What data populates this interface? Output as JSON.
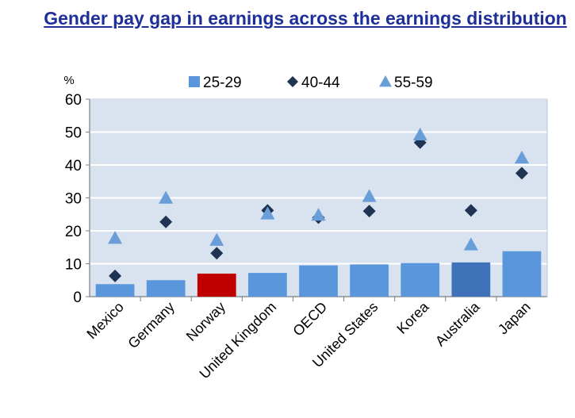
{
  "chart_data": {
    "type": "bar",
    "title": "Gender pay gap in earnings across the earnings distribution",
    "ylabel": "%",
    "ylim": [
      0,
      60
    ],
    "yticks": [
      0,
      10,
      20,
      30,
      40,
      50,
      60
    ],
    "grid": true,
    "legend_position": "top-center",
    "categories": [
      "Mexico",
      "Germany",
      "Norway",
      "United Kingdom",
      "OECD",
      "United States",
      "Korea",
      "Australia",
      "Japan"
    ],
    "series": [
      {
        "name": "25-29",
        "mark": "bar",
        "color": "#5a96dc",
        "values": [
          3.8,
          5.0,
          7.0,
          7.2,
          9.5,
          9.8,
          10.2,
          10.4,
          13.8
        ]
      },
      {
        "name": "40-44",
        "mark": "diamond",
        "color": "#1f3352",
        "values": [
          6.3,
          22.7,
          13.2,
          26.2,
          24.0,
          26.0,
          46.8,
          26.2,
          37.5
        ]
      },
      {
        "name": "55-59",
        "mark": "triangle",
        "color": "#6a9ed8",
        "values": [
          17.8,
          30.0,
          17.2,
          25.2,
          24.8,
          30.5,
          49.2,
          15.8,
          42.2
        ]
      }
    ],
    "highlight_colors": {
      "Norway": "#c00000",
      "Australia": "#3f72b8"
    }
  }
}
